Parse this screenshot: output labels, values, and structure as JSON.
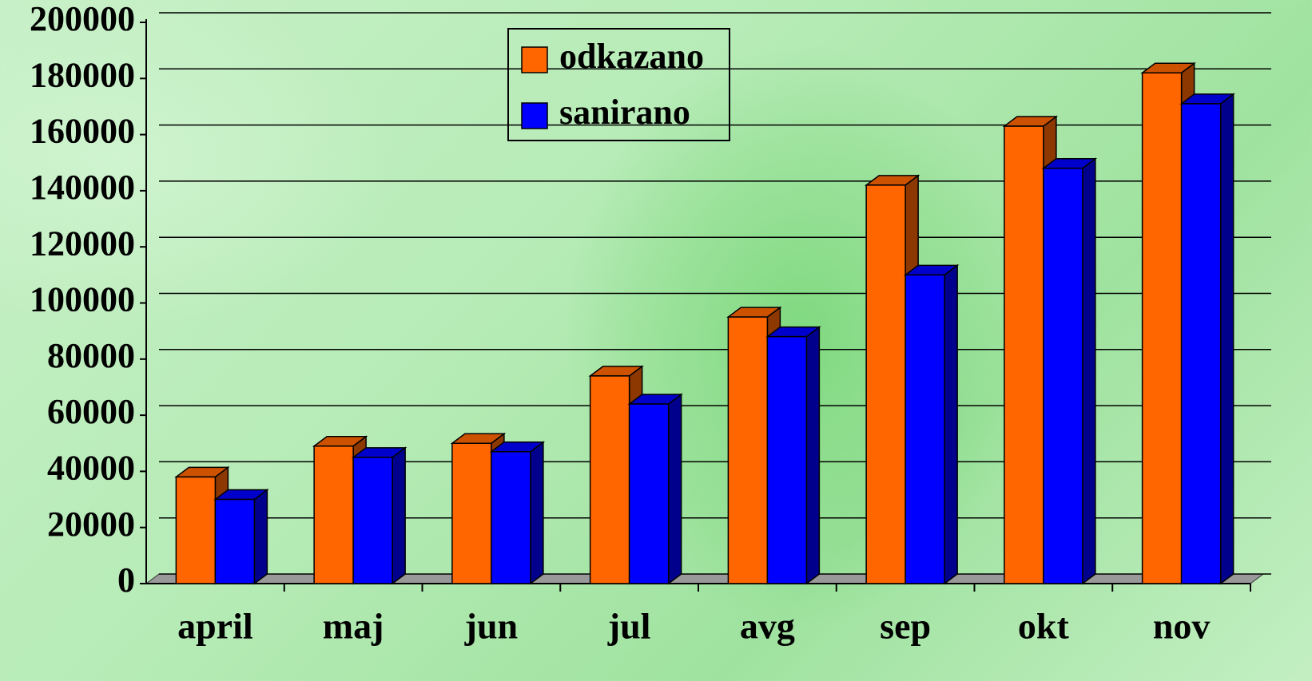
{
  "chart_data": {
    "type": "bar3d",
    "categories": [
      "april",
      "maj",
      "jun",
      "jul",
      "avg",
      "sep",
      "okt",
      "nov"
    ],
    "series": [
      {
        "name": "odkazano",
        "color": "#ff6600",
        "values": [
          38000,
          49000,
          50000,
          74000,
          95000,
          142000,
          163000,
          182000
        ]
      },
      {
        "name": "sanirano",
        "color": "#0000ff",
        "values": [
          30000,
          45000,
          47000,
          64000,
          88000,
          110000,
          148000,
          171000
        ]
      }
    ],
    "ylim": [
      0,
      200000
    ],
    "yticks": [
      0,
      20000,
      40000,
      60000,
      80000,
      100000,
      120000,
      140000,
      160000,
      180000,
      200000
    ],
    "grid": true
  }
}
